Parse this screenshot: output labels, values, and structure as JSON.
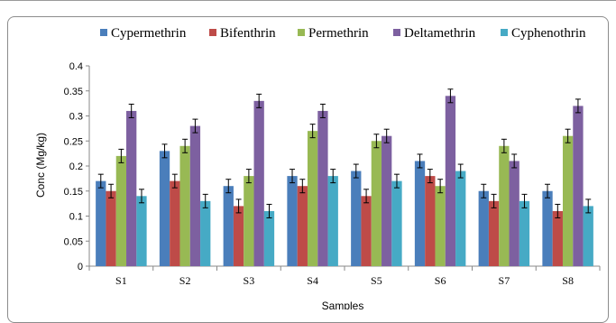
{
  "chart_data": {
    "type": "bar",
    "title": "",
    "xlabel": "Samples",
    "ylabel": "Conc (Mg/kg)",
    "ylim": [
      0,
      0.4
    ],
    "yticks": [
      "0",
      "0.05",
      "0.1",
      "0.15",
      "0.2",
      "0.25",
      "0.3",
      "0.35",
      "0.4"
    ],
    "categories": [
      "S1",
      "S2",
      "S3",
      "S4",
      "S5",
      "S6",
      "S7",
      "S8"
    ],
    "legend_position": "top",
    "grid": false,
    "error_bars": true,
    "series": [
      {
        "name": "Cypermethrin",
        "color": "#4a7ebb",
        "values": [
          0.17,
          0.23,
          0.16,
          0.18,
          0.19,
          0.21,
          0.15,
          0.15
        ]
      },
      {
        "name": "Bifenthrin",
        "color": "#be4b48",
        "values": [
          0.15,
          0.17,
          0.12,
          0.16,
          0.14,
          0.18,
          0.13,
          0.11
        ]
      },
      {
        "name": "Permethrin",
        "color": "#98b954",
        "values": [
          0.22,
          0.24,
          0.18,
          0.27,
          0.25,
          0.16,
          0.24,
          0.26
        ]
      },
      {
        "name": "Deltamethrin",
        "color": "#7d60a0",
        "values": [
          0.31,
          0.28,
          0.33,
          0.31,
          0.26,
          0.34,
          0.21,
          0.32
        ]
      },
      {
        "name": "Cyphenothrin",
        "color": "#46aac5",
        "values": [
          0.14,
          0.13,
          0.11,
          0.18,
          0.17,
          0.19,
          0.13,
          0.12
        ]
      }
    ]
  }
}
